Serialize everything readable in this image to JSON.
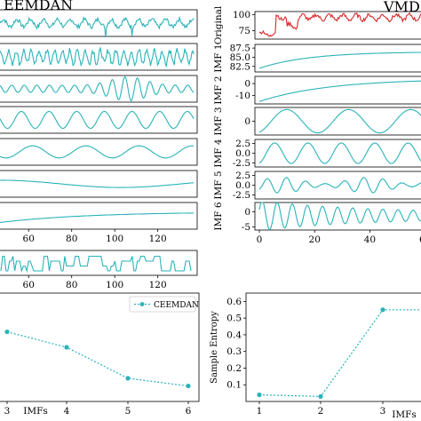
{
  "colors": {
    "original": "#d62728",
    "imf": "#2ab3b8",
    "entropy": "#2ab3b8"
  },
  "titles": {
    "left": "EEMDAN",
    "right": "VMD"
  },
  "chart_data": [
    {
      "id": "ceemdan-decomposition",
      "type": "line",
      "title": "EEMDAN",
      "x_ticks": [
        60,
        80,
        100,
        120
      ],
      "rows": [
        {
          "shape": "noisy",
          "amp": 0.35
        },
        {
          "shape": "osc",
          "amp": 0.55,
          "freq": 0.9
        },
        {
          "shape": "osc",
          "amp": 0.5,
          "freq": 0.55
        },
        {
          "shape": "osc",
          "amp": 0.7,
          "freq": 0.25
        },
        {
          "shape": "osc",
          "amp": 0.5,
          "freq": 0.13
        },
        {
          "shape": "trend",
          "amp": 0.3
        },
        {
          "shape": "trend",
          "amp": 0.55
        }
      ],
      "extra_row": {
        "shape": "step",
        "x_ticks": [
          60,
          80,
          100,
          120
        ]
      }
    },
    {
      "id": "vmd-decomposition",
      "type": "line",
      "title": "VMD",
      "x_ticks": [
        0,
        20,
        40,
        60
      ],
      "rows": [
        {
          "label": "Original",
          "yticks": [
            "100",
            "75"
          ],
          "ylim": [
            62,
            105
          ]
        },
        {
          "label": "IMF 1",
          "yticks": [
            "87.5",
            "85.0",
            "82.5"
          ],
          "ylim": [
            81,
            88.5
          ]
        },
        {
          "label": "IMF 2",
          "yticks": [
            "0",
            "-10"
          ],
          "ylim": [
            -17,
            6
          ]
        },
        {
          "label": "IMF 3",
          "yticks": [
            "0"
          ],
          "ylim": [
            -1,
            1
          ]
        },
        {
          "label": "IMF 4",
          "yticks": [
            "2.5",
            "0.0",
            "-2.5"
          ],
          "ylim": [
            -3.5,
            3.5
          ]
        },
        {
          "label": "IMF 5",
          "yticks": [
            "2.5",
            "0.0",
            "-2.5"
          ],
          "ylim": [
            -3.5,
            3.5
          ]
        },
        {
          "label": "IMF 6",
          "yticks": [
            "0",
            "-5"
          ],
          "ylim": [
            -6,
            3
          ]
        }
      ]
    },
    {
      "id": "ceemdan-entropy",
      "type": "line",
      "xlabel": "IMFs",
      "categories": [
        "3",
        "4",
        "5",
        "6"
      ],
      "series": [
        {
          "name": "CEEMDAN",
          "values": [
            0.36,
            0.34,
            0.3,
            0.29
          ]
        }
      ],
      "ylim": [
        0.27,
        0.41
      ],
      "legend": "top-right"
    },
    {
      "id": "vmd-entropy",
      "type": "line",
      "xlabel": "IMFs",
      "ylabel": "Sample Entropy",
      "categories": [
        "1",
        "2",
        "3"
      ],
      "series": [
        {
          "values": [
            0.04,
            0.03,
            0.55
          ]
        }
      ],
      "yticks": [
        "0.1",
        "0.2",
        "0.3",
        "0.4",
        "0.5",
        "0.6"
      ],
      "ylim": [
        0.0,
        0.65
      ]
    }
  ]
}
